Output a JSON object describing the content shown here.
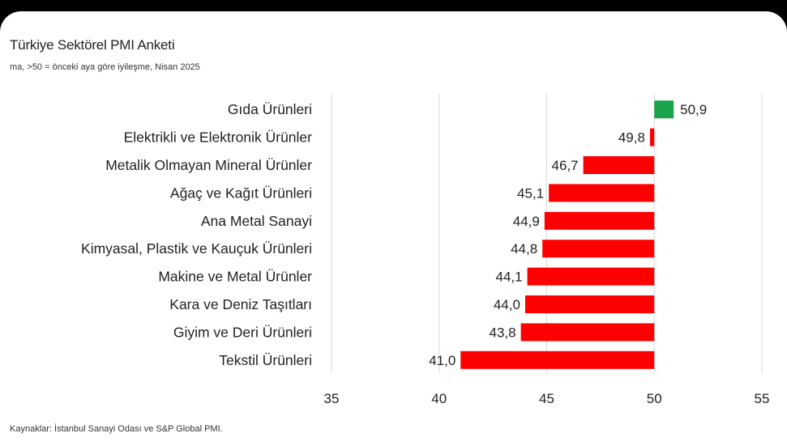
{
  "chart_data": {
    "type": "bar",
    "orientation": "horizontal",
    "title": "Türkiye Sektörel PMI Anketi",
    "subtitle": "ma, >50 = önceki aya göre iyileşme, Nisan 2025",
    "source": "Kaynaklar: İstanbul Sanayi Odası ve S&P Global PMI.",
    "baseline": 50,
    "xlim": [
      35,
      55
    ],
    "xticks": [
      "35",
      "40",
      "45",
      "50",
      "55"
    ],
    "grid": true,
    "categories": [
      "Gıda Ürünleri",
      "Elektrikli ve Elektronik Ürünler",
      "Metalik Olmayan Mineral Ürünler",
      "Ağaç ve Kağıt Ürünleri",
      "Ana Metal Sanayi",
      "Kimyasal, Plastik ve Kauçuk Ürünleri",
      "Makine ve Metal Ürünler",
      "Kara ve Deniz Taşıtları",
      "Giyim ve Deri Ürünleri",
      "Tekstil Ürünleri"
    ],
    "values": [
      50.9,
      49.8,
      46.7,
      45.1,
      44.9,
      44.8,
      44.1,
      44.0,
      43.8,
      41.0
    ],
    "value_labels": [
      "50,9",
      "49,8",
      "46,7",
      "45,1",
      "44,9",
      "44,8",
      "44,1",
      "44,0",
      "43,8",
      "41,0"
    ],
    "colors": {
      "above": "#1aa34a",
      "below": "#ff0000",
      "grid": "#d9d9d9"
    }
  }
}
